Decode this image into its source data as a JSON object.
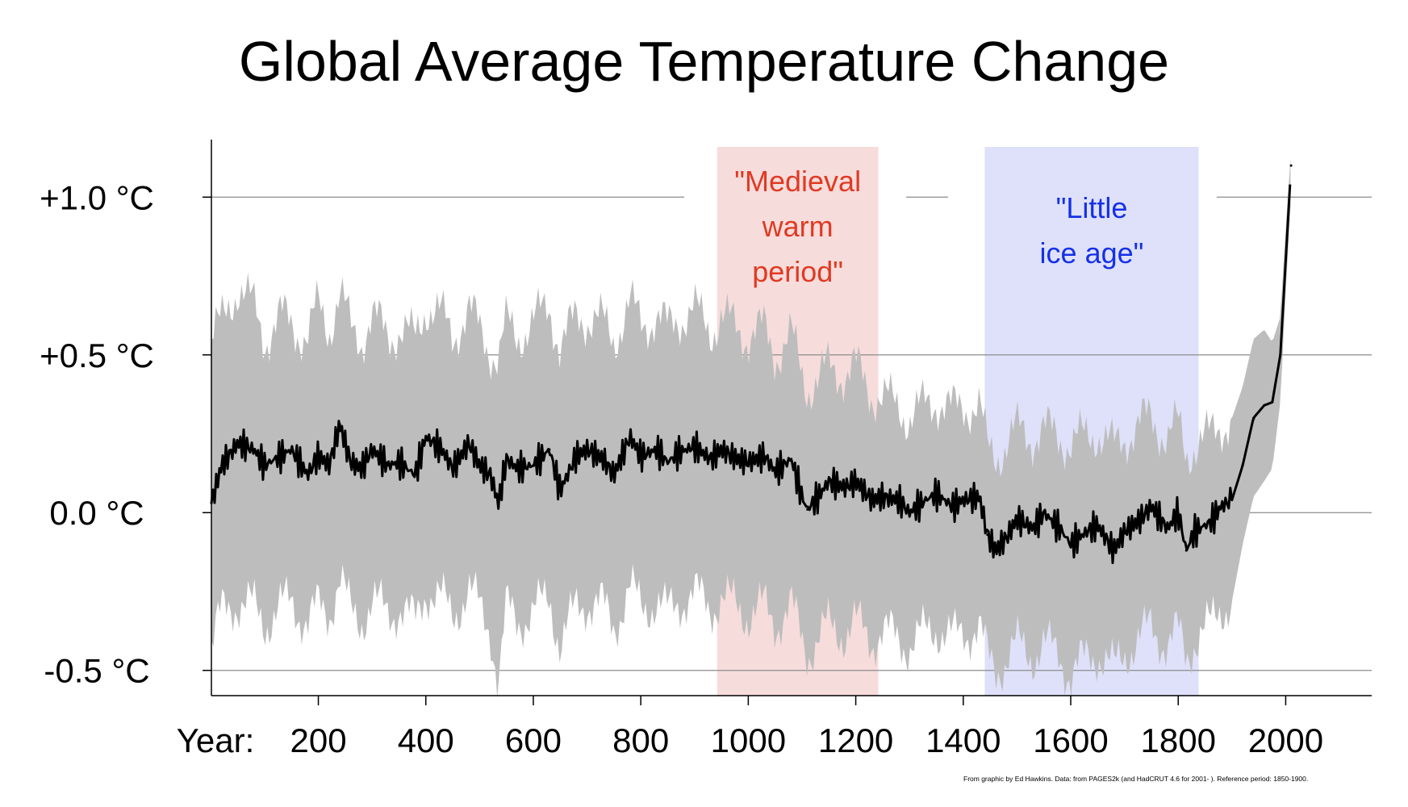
{
  "chart_data": {
    "type": "line",
    "title": "Global Average Temperature Change",
    "xlabel": "Year:",
    "ylabel": "",
    "xlim": [
      1,
      2160
    ],
    "ylim": [
      -0.58,
      1.19
    ],
    "x_ticks": [
      200,
      400,
      600,
      800,
      1000,
      1200,
      1400,
      1600,
      1800,
      2000
    ],
    "y_ticks": [
      {
        "value": 1.0,
        "label": "+1.0 °C"
      },
      {
        "value": 0.5,
        "label": "+0.5 °C"
      },
      {
        "value": 0.0,
        "label": "0.0 °C"
      },
      {
        "value": -0.5,
        "label": "-0.5 °C"
      }
    ],
    "grid": "horizontal",
    "bands": [
      {
        "name": "medieval-warm-period",
        "label_lines": [
          "\"Medieval",
          "warm",
          "period\""
        ],
        "start": 942,
        "end": 1242,
        "fill": "#f7dcdc",
        "text_color": "#e03a22"
      },
      {
        "name": "little-ice-age",
        "label_lines": [
          "\"Little",
          "ice age\""
        ],
        "start": 1440,
        "end": 1838,
        "fill": "#dfe1fa",
        "text_color": "#1530e8"
      }
    ],
    "series": [
      {
        "name": "Temperature anomaly (smoothed)",
        "color": "#000000",
        "x": [
          1,
          20,
          50,
          80,
          100,
          130,
          150,
          180,
          200,
          220,
          240,
          260,
          280,
          300,
          330,
          350,
          380,
          400,
          430,
          450,
          480,
          500,
          520,
          535,
          550,
          570,
          600,
          630,
          650,
          680,
          700,
          730,
          750,
          780,
          800,
          830,
          850,
          870,
          900,
          930,
          950,
          980,
          1000,
          1030,
          1050,
          1080,
          1100,
          1110,
          1130,
          1150,
          1180,
          1200,
          1230,
          1250,
          1280,
          1300,
          1330,
          1350,
          1380,
          1400,
          1430,
          1445,
          1460,
          1480,
          1500,
          1530,
          1550,
          1580,
          1600,
          1630,
          1650,
          1680,
          1700,
          1730,
          1750,
          1780,
          1800,
          1815,
          1830,
          1860,
          1880,
          1900,
          1920,
          1940,
          1960,
          1975,
          1990,
          2000,
          2010
        ],
        "values": [
          0.03,
          0.15,
          0.22,
          0.2,
          0.15,
          0.18,
          0.2,
          0.12,
          0.18,
          0.15,
          0.28,
          0.16,
          0.14,
          0.2,
          0.15,
          0.16,
          0.12,
          0.24,
          0.2,
          0.14,
          0.22,
          0.15,
          0.12,
          0.03,
          0.17,
          0.14,
          0.15,
          0.2,
          0.07,
          0.18,
          0.2,
          0.17,
          0.12,
          0.24,
          0.18,
          0.2,
          0.16,
          0.19,
          0.21,
          0.17,
          0.2,
          0.17,
          0.16,
          0.18,
          0.13,
          0.17,
          0.05,
          0.01,
          0.05,
          0.1,
          0.08,
          0.1,
          0.04,
          0.05,
          0.04,
          0.0,
          0.04,
          0.06,
          0.02,
          0.04,
          0.05,
          -0.07,
          -0.12,
          -0.08,
          -0.02,
          -0.05,
          0.0,
          -0.05,
          -0.1,
          -0.06,
          -0.04,
          -0.12,
          -0.06,
          -0.02,
          0.02,
          -0.05,
          0.0,
          -0.12,
          -0.06,
          -0.03,
          0.02,
          0.04,
          0.15,
          0.3,
          0.34,
          0.35,
          0.5,
          0.8,
          1.1
        ]
      },
      {
        "name": "Uncertainty range",
        "color": "#bdbdbd",
        "x": [
          1,
          20,
          50,
          80,
          100,
          130,
          150,
          180,
          200,
          220,
          240,
          260,
          280,
          300,
          330,
          350,
          380,
          400,
          430,
          450,
          480,
          500,
          520,
          535,
          550,
          570,
          600,
          630,
          650,
          680,
          700,
          730,
          750,
          780,
          800,
          830,
          850,
          870,
          900,
          930,
          950,
          980,
          1000,
          1030,
          1050,
          1080,
          1100,
          1110,
          1130,
          1150,
          1180,
          1200,
          1230,
          1250,
          1280,
          1300,
          1330,
          1350,
          1380,
          1400,
          1430,
          1445,
          1460,
          1480,
          1500,
          1530,
          1550,
          1580,
          1600,
          1630,
          1650,
          1680,
          1700,
          1730,
          1750,
          1780,
          1800,
          1815,
          1830,
          1860,
          1880,
          1900,
          1920,
          1940,
          1960,
          1975,
          1990,
          2000,
          2010
        ],
        "upper": [
          0.55,
          0.6,
          0.72,
          0.65,
          0.55,
          0.62,
          0.6,
          0.55,
          0.66,
          0.58,
          0.7,
          0.58,
          0.55,
          0.62,
          0.56,
          0.58,
          0.55,
          0.66,
          0.62,
          0.56,
          0.64,
          0.58,
          0.52,
          0.48,
          0.6,
          0.56,
          0.6,
          0.66,
          0.52,
          0.62,
          0.62,
          0.6,
          0.55,
          0.66,
          0.6,
          0.62,
          0.58,
          0.62,
          0.64,
          0.58,
          0.62,
          0.58,
          0.56,
          0.58,
          0.5,
          0.56,
          0.44,
          0.4,
          0.42,
          0.46,
          0.44,
          0.46,
          0.38,
          0.36,
          0.34,
          0.3,
          0.34,
          0.36,
          0.32,
          0.34,
          0.34,
          0.2,
          0.18,
          0.22,
          0.26,
          0.24,
          0.26,
          0.24,
          0.22,
          0.24,
          0.26,
          0.2,
          0.24,
          0.28,
          0.3,
          0.24,
          0.28,
          0.18,
          0.22,
          0.24,
          0.28,
          0.3,
          0.4,
          0.55,
          0.58,
          0.54,
          0.62,
          0.9,
          1.15
        ],
        "lower": [
          -0.42,
          -0.32,
          -0.28,
          -0.3,
          -0.35,
          -0.3,
          -0.28,
          -0.35,
          -0.3,
          -0.32,
          -0.2,
          -0.32,
          -0.34,
          -0.28,
          -0.32,
          -0.3,
          -0.35,
          -0.24,
          -0.28,
          -0.32,
          -0.25,
          -0.3,
          -0.36,
          -0.55,
          -0.3,
          -0.34,
          -0.32,
          -0.26,
          -0.42,
          -0.3,
          -0.28,
          -0.3,
          -0.36,
          -0.24,
          -0.3,
          -0.28,
          -0.32,
          -0.28,
          -0.26,
          -0.3,
          -0.27,
          -0.3,
          -0.32,
          -0.3,
          -0.35,
          -0.3,
          -0.4,
          -0.44,
          -0.4,
          -0.36,
          -0.38,
          -0.35,
          -0.4,
          -0.38,
          -0.4,
          -0.42,
          -0.38,
          -0.36,
          -0.4,
          -0.38,
          -0.36,
          -0.46,
          -0.5,
          -0.46,
          -0.42,
          -0.45,
          -0.42,
          -0.45,
          -0.52,
          -0.46,
          -0.44,
          -0.5,
          -0.44,
          -0.4,
          -0.36,
          -0.42,
          -0.38,
          -0.46,
          -0.4,
          -0.36,
          -0.3,
          -0.28,
          -0.1,
          0.05,
          0.1,
          0.14,
          0.35,
          0.7,
          1.0
        ]
      }
    ],
    "source_note": "From graphic by Ed Hawkins.   Data: from PAGES2k (and HadCRUT 4.6 for 2001- ).   Reference period: 1850-1900."
  }
}
